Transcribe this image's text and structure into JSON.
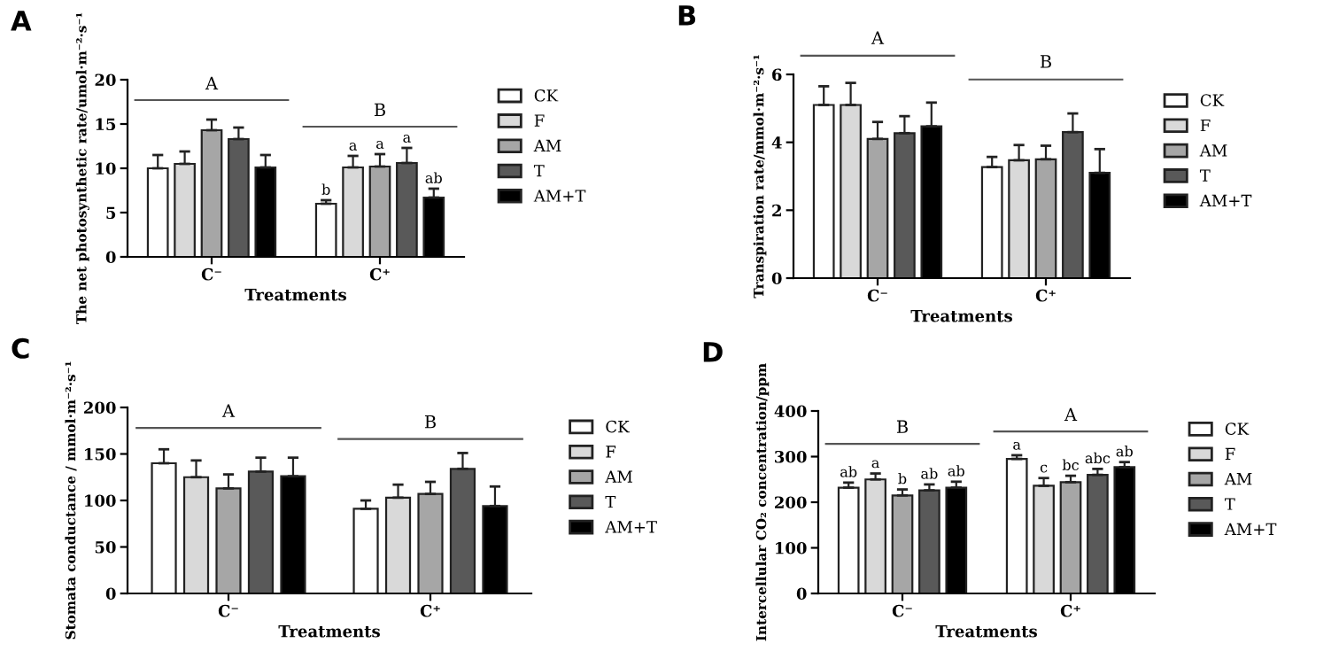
{
  "chart_data": [
    {
      "type": "bar",
      "title": "A",
      "xlabel": "Treatments",
      "ylabel": "The net photosynthetic rate/umol·m⁻²·s⁻¹",
      "categories": [
        "C⁻",
        "C⁺"
      ],
      "ylim": [
        0,
        20
      ],
      "yticks": [
        0,
        5,
        10,
        15,
        20
      ],
      "legend": "right",
      "grid": false,
      "series": [
        {
          "name": "CK",
          "color": "#ffffff",
          "values": [
            10.0,
            6.0
          ],
          "errors": [
            1.5,
            0.4
          ],
          "value_labels": [
            null,
            "b"
          ]
        },
        {
          "name": "F",
          "color": "#d9d9d9",
          "values": [
            10.5,
            10.1
          ],
          "errors": [
            1.4,
            1.3
          ],
          "value_labels": [
            null,
            "a"
          ]
        },
        {
          "name": "AM",
          "color": "#a6a6a6",
          "values": [
            14.3,
            10.2
          ],
          "errors": [
            1.2,
            1.4
          ],
          "value_labels": [
            null,
            "a"
          ]
        },
        {
          "name": "T",
          "color": "#595959",
          "values": [
            13.3,
            10.6
          ],
          "errors": [
            1.3,
            1.7
          ],
          "value_labels": [
            null,
            "a"
          ]
        },
        {
          "name": "AM+T",
          "color": "#000000",
          "values": [
            10.1,
            6.7
          ],
          "errors": [
            1.4,
            1.0
          ],
          "value_labels": [
            null,
            "ab"
          ]
        }
      ],
      "ref_lines": [
        {
          "axis": "y",
          "value": 17.7,
          "label": "A",
          "color": "#555555"
        },
        {
          "axis": "y",
          "value": 14.7,
          "label": "B",
          "color": "#555555"
        }
      ]
    },
    {
      "type": "bar",
      "title": "B",
      "xlabel": "Treatments",
      "ylabel": "Transpiration rate/mmol·m⁻²·s⁻¹",
      "categories": [
        "C⁻",
        "C⁺"
      ],
      "ylim": [
        0,
        6
      ],
      "yticks": [
        0,
        2,
        4,
        6
      ],
      "legend": "right",
      "grid": false,
      "series": [
        {
          "name": "CK",
          "color": "#ffffff",
          "values": [
            5.1,
            3.27
          ],
          "errors": [
            0.55,
            0.3
          ]
        },
        {
          "name": "F",
          "color": "#d9d9d9",
          "values": [
            5.1,
            3.47
          ],
          "errors": [
            0.65,
            0.45
          ]
        },
        {
          "name": "AM",
          "color": "#a6a6a6",
          "values": [
            4.1,
            3.5
          ],
          "errors": [
            0.5,
            0.4
          ]
        },
        {
          "name": "T",
          "color": "#595959",
          "values": [
            4.27,
            4.3
          ],
          "errors": [
            0.5,
            0.55
          ]
        },
        {
          "name": "AM+T",
          "color": "#000000",
          "values": [
            4.47,
            3.1
          ],
          "errors": [
            0.7,
            0.7
          ]
        }
      ],
      "ref_lines": [
        {
          "axis": "y",
          "value": 6.55,
          "label": "A",
          "color": "#555555"
        },
        {
          "axis": "y",
          "value": 5.85,
          "label": "B",
          "color": "#555555"
        }
      ]
    },
    {
      "type": "bar",
      "title": "C",
      "xlabel": "Treatments",
      "ylabel": "Stomata conductance / mmol·m⁻²·s⁻¹",
      "categories": [
        "C⁻",
        "C⁺"
      ],
      "ylim": [
        0,
        200
      ],
      "yticks": [
        0,
        50,
        100,
        150,
        200
      ],
      "legend": "right",
      "grid": false,
      "series": [
        {
          "name": "CK",
          "color": "#ffffff",
          "values": [
            140,
            91
          ],
          "errors": [
            15,
            9
          ]
        },
        {
          "name": "F",
          "color": "#d9d9d9",
          "values": [
            125,
            103
          ],
          "errors": [
            18,
            14
          ]
        },
        {
          "name": "AM",
          "color": "#a6a6a6",
          "values": [
            113,
            107
          ],
          "errors": [
            15,
            13
          ]
        },
        {
          "name": "T",
          "color": "#595959",
          "values": [
            131,
            134
          ],
          "errors": [
            15,
            17
          ]
        },
        {
          "name": "AM+T",
          "color": "#000000",
          "values": [
            126,
            94
          ],
          "errors": [
            20,
            21
          ]
        }
      ],
      "ref_lines": [
        {
          "axis": "y",
          "value": 178,
          "label": "A",
          "color": "#555555"
        },
        {
          "axis": "y",
          "value": 166,
          "label": "B",
          "color": "#555555"
        }
      ]
    },
    {
      "type": "bar",
      "title": "D",
      "xlabel": "Treatments",
      "ylabel": "Intercellular CO₂ concentration/ppm",
      "categories": [
        "C⁻",
        "C⁺"
      ],
      "ylim": [
        0,
        400
      ],
      "yticks": [
        0,
        100,
        200,
        300,
        400
      ],
      "legend": "right",
      "grid": false,
      "series": [
        {
          "name": "CK",
          "color": "#ffffff",
          "values": [
            232,
            295
          ],
          "errors": [
            11,
            8
          ],
          "value_labels": [
            "ab",
            "a"
          ]
        },
        {
          "name": "F",
          "color": "#d9d9d9",
          "values": [
            250,
            236
          ],
          "errors": [
            13,
            17
          ],
          "value_labels": [
            "a",
            "c"
          ]
        },
        {
          "name": "AM",
          "color": "#a6a6a6",
          "values": [
            215,
            244
          ],
          "errors": [
            13,
            14
          ],
          "value_labels": [
            "b",
            "bc"
          ]
        },
        {
          "name": "T",
          "color": "#595959",
          "values": [
            226,
            260
          ],
          "errors": [
            13,
            13
          ],
          "value_labels": [
            "ab",
            "abc"
          ]
        },
        {
          "name": "AM+T",
          "color": "#000000",
          "values": [
            232,
            277
          ],
          "errors": [
            13,
            11
          ],
          "value_labels": [
            "ab",
            "ab"
          ]
        }
      ],
      "ref_lines": [
        {
          "axis": "y",
          "value": 328,
          "label": "B",
          "color": "#555555"
        },
        {
          "axis": "y",
          "value": 355,
          "label": "A",
          "color": "#555555"
        }
      ]
    }
  ]
}
